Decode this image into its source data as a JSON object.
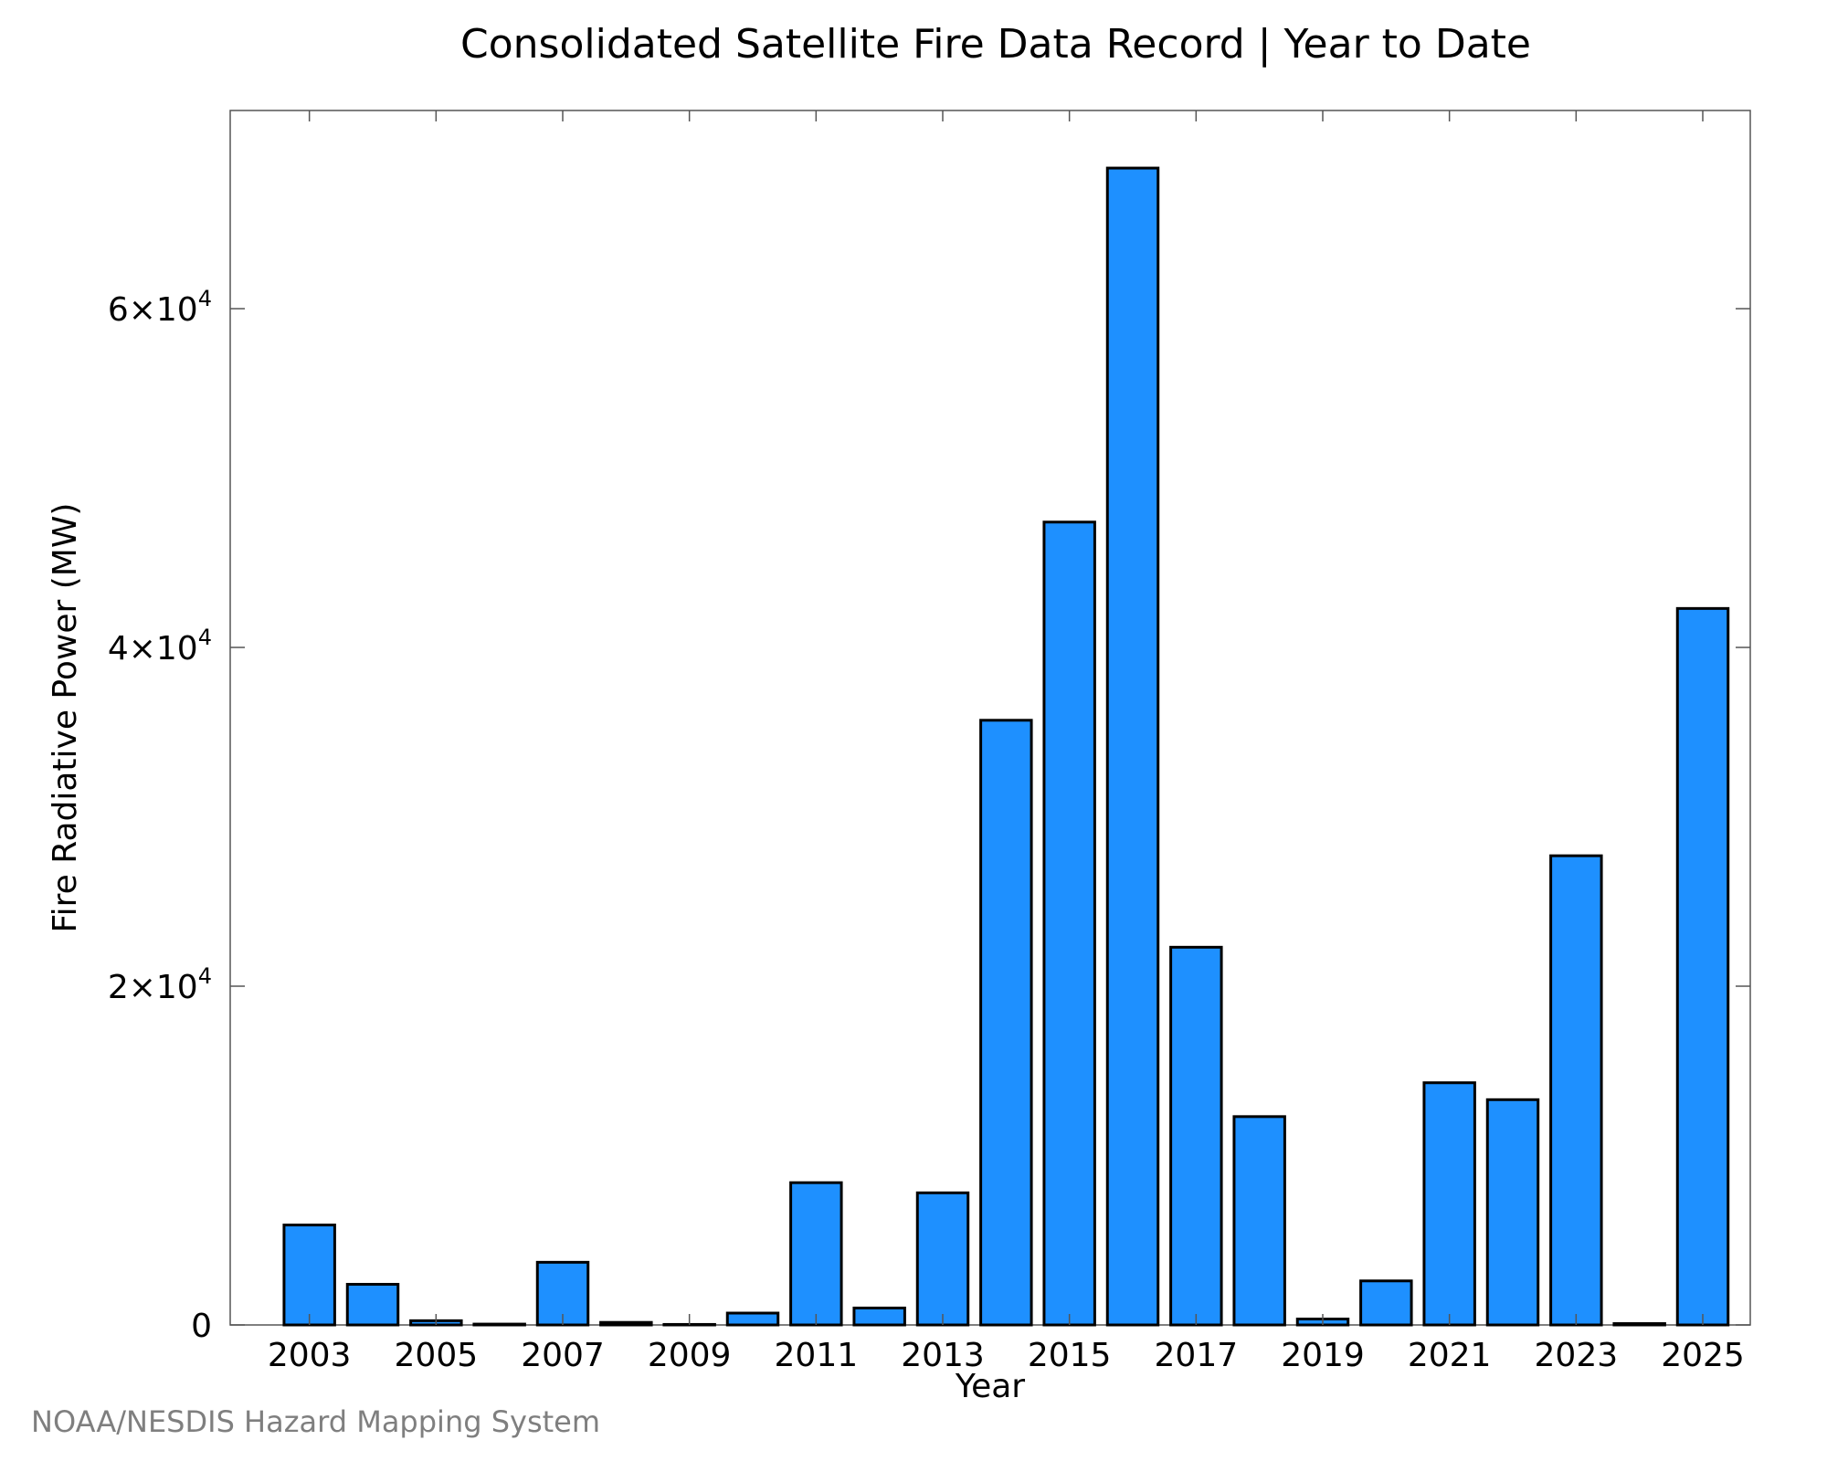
{
  "chart_data": {
    "type": "bar",
    "title": "Consolidated Satellite Fire Data Record | Year to Date",
    "xlabel": "Year",
    "ylabel": "Fire Radiative Power (MW)",
    "categories": [
      2003,
      2004,
      2005,
      2006,
      2007,
      2008,
      2009,
      2010,
      2011,
      2012,
      2013,
      2014,
      2015,
      2016,
      2017,
      2018,
      2019,
      2020,
      2021,
      2022,
      2023,
      2024,
      2025
    ],
    "values": [
      5900,
      2400,
      250,
      50,
      3700,
      150,
      30,
      700,
      8400,
      1000,
      7800,
      35700,
      47400,
      68300,
      22300,
      12300,
      350,
      2600,
      14300,
      13300,
      27700,
      80,
      42300
    ],
    "xticks": [
      2003,
      2005,
      2007,
      2009,
      2011,
      2013,
      2015,
      2017,
      2019,
      2021,
      2023,
      2025
    ],
    "yticks": [
      {
        "value": 0,
        "mantissa": "0",
        "exponent": ""
      },
      {
        "value": 20000,
        "mantissa": "2×10",
        "exponent": "4"
      },
      {
        "value": 40000,
        "mantissa": "4×10",
        "exponent": "4"
      },
      {
        "value": 60000,
        "mantissa": "6×10",
        "exponent": "4"
      }
    ],
    "ylim": [
      0,
      71700
    ],
    "xlim": [
      2001.75,
      2025.75
    ],
    "bar_color": "#1e90ff",
    "bar_edge_color": "#000000",
    "grid": false,
    "legend": "none"
  },
  "credit": "NOAA/NESDIS Hazard Mapping System"
}
